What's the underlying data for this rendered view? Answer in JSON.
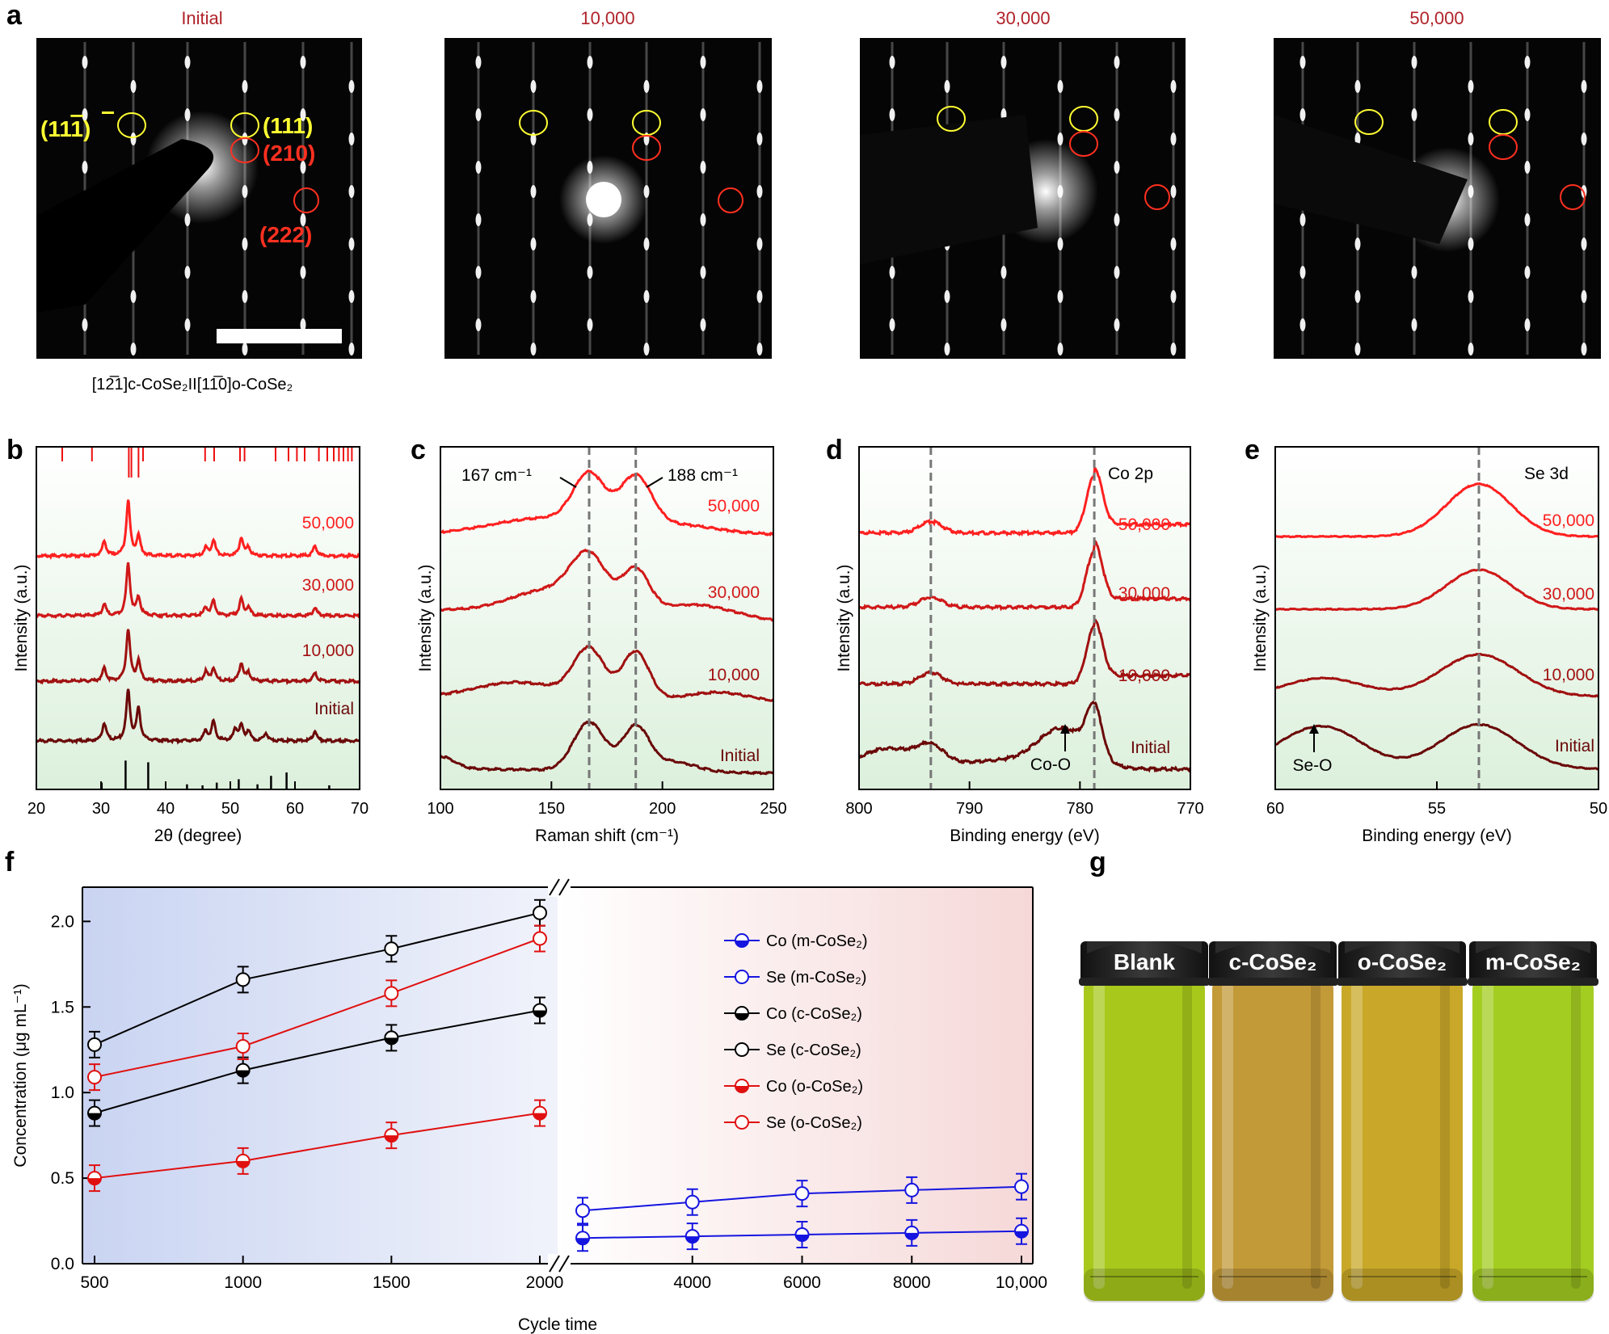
{
  "panels": {
    "a": "a",
    "b": "b",
    "c": "c",
    "d": "d",
    "e": "e",
    "f": "f",
    "g": "g"
  },
  "saed": {
    "titles": [
      "Initial",
      "10,000",
      "30,000",
      "50,000"
    ],
    "labels": {
      "i111b": "(11",
      "i111b_bar": "1",
      "i111b_end": ")",
      "i111": "(111)",
      "i210": "(210)",
      "i222": "(222)"
    },
    "caption": "[12̅1]c-CoSe₂II[11̅0]o-CoSe₂",
    "title_color": "#b0232a"
  },
  "chart_data": [
    {
      "id": "b",
      "type": "line",
      "xlabel": "2θ (degree)",
      "ylabel": "Intensity (a.u.)",
      "xlim": [
        20,
        70
      ],
      "xticks": [
        20,
        30,
        40,
        50,
        60,
        70
      ],
      "series": [
        {
          "name": "50,000",
          "peaks": [
            [
              30.5,
              0.45
            ],
            [
              34.2,
              1.7
            ],
            [
              35.8,
              0.6
            ],
            [
              46.2,
              0.25
            ],
            [
              47.4,
              0.5
            ],
            [
              51.7,
              0.55
            ],
            [
              52.8,
              0.25
            ],
            [
              63.1,
              0.3
            ]
          ]
        },
        {
          "name": "30,000",
          "peaks": [
            [
              30.5,
              0.35
            ],
            [
              34.2,
              1.6
            ],
            [
              35.8,
              0.55
            ],
            [
              46.2,
              0.25
            ],
            [
              47.4,
              0.45
            ],
            [
              51.7,
              0.5
            ],
            [
              52.8,
              0.25
            ],
            [
              63.1,
              0.25
            ]
          ]
        },
        {
          "name": "10,000",
          "peaks": [
            [
              30.5,
              0.4
            ],
            [
              34.2,
              1.6
            ],
            [
              35.8,
              0.6
            ],
            [
              46.2,
              0.3
            ],
            [
              47.4,
              0.4
            ],
            [
              51.7,
              0.55
            ],
            [
              52.8,
              0.25
            ],
            [
              63.1,
              0.25
            ]
          ]
        },
        {
          "name": "Initial",
          "peaks": [
            [
              30.5,
              0.55
            ],
            [
              34.2,
              1.55
            ],
            [
              35.8,
              1.0
            ],
            [
              46.2,
              0.3
            ],
            [
              47.4,
              0.6
            ],
            [
              50.8,
              0.35
            ],
            [
              51.7,
              0.45
            ],
            [
              52.8,
              0.3
            ],
            [
              55.5,
              0.25
            ],
            [
              63.1,
              0.3
            ]
          ]
        }
      ],
      "ref_top": [
        24,
        28.6,
        34.3,
        34.7,
        35.8,
        36.5,
        46.1,
        47.5,
        51.5,
        52.2,
        57,
        59,
        60.3,
        61.5,
        63.7,
        65,
        66,
        66.8,
        67.5,
        68.2,
        68.8
      ],
      "ref_bottom": [
        [
          30.1,
          0.2
        ],
        [
          33.8,
          0.85
        ],
        [
          37.3,
          0.8
        ],
        [
          43.3,
          0.15
        ],
        [
          45.7,
          0.12
        ],
        [
          47.9,
          0.2
        ],
        [
          51.3,
          0.3
        ],
        [
          54.2,
          0.15
        ],
        [
          56.3,
          0.4
        ],
        [
          58.7,
          0.5
        ],
        [
          65.3,
          0.12
        ]
      ]
    },
    {
      "id": "c",
      "type": "line",
      "xlabel": "Raman shift (cm⁻¹)",
      "ylabel": "Intensity (a.u.)",
      "xlim": [
        100,
        250
      ],
      "xticks": [
        100,
        150,
        200,
        250
      ],
      "vlines": [
        167,
        188
      ],
      "annotations": [
        "167 cm⁻¹",
        "188 cm⁻¹"
      ],
      "series": [
        {
          "name": "50,000"
        },
        {
          "name": "30,000"
        },
        {
          "name": "10,000"
        },
        {
          "name": "Initial"
        }
      ]
    },
    {
      "id": "d",
      "type": "line",
      "xlabel": "Binding energy (eV)",
      "ylabel": "Intensity (a.u.)",
      "xlim": [
        800,
        770
      ],
      "xticks": [
        800,
        790,
        780,
        770
      ],
      "vlines": [
        793.5,
        778.7
      ],
      "annotations": [
        "Co 2p",
        "Co-O"
      ],
      "series": [
        {
          "name": "50,000"
        },
        {
          "name": "30,000"
        },
        {
          "name": "10,000"
        },
        {
          "name": "Initial"
        }
      ]
    },
    {
      "id": "e",
      "type": "line",
      "xlabel": "Binding energy (eV)",
      "ylabel": "Intensity (a.u.)",
      "xlim": [
        60,
        50
      ],
      "xticks": [
        60,
        55,
        50
      ],
      "vlines": [
        53.7
      ],
      "annotations": [
        "Se 3d",
        "Se-O"
      ],
      "series": [
        {
          "name": "50,000"
        },
        {
          "name": "30,000"
        },
        {
          "name": "10,000"
        },
        {
          "name": "Initial"
        }
      ]
    },
    {
      "id": "f",
      "type": "line",
      "xlabel": "Cycle time",
      "ylabel": "Concentration (μg mL⁻¹)",
      "ylim": [
        0,
        2.2
      ],
      "yticks": [
        "0.0",
        "0.5",
        "1.0",
        "1.5",
        "2.0"
      ],
      "xticks_left": [
        "500",
        "1000",
        "1500",
        "2000"
      ],
      "xticks_right": [
        "4000",
        "6000",
        "8000",
        "10,000"
      ],
      "series": [
        {
          "name": "Co (m-CoSe₂)",
          "color": "#1515e0",
          "style": "half",
          "x": [
            2000,
            4000,
            6000,
            8000,
            10000
          ],
          "values": [
            0.15,
            0.16,
            0.17,
            0.18,
            0.19
          ]
        },
        {
          "name": "Se (m-CoSe₂)",
          "color": "#1515e0",
          "style": "open",
          "x": [
            2000,
            4000,
            6000,
            8000,
            10000
          ],
          "values": [
            0.31,
            0.36,
            0.41,
            0.43,
            0.45
          ]
        },
        {
          "name": "Co (c-CoSe₂)",
          "color": "#000000",
          "style": "half",
          "x": [
            500,
            1000,
            1500,
            2000
          ],
          "values": [
            0.88,
            1.13,
            1.32,
            1.48
          ]
        },
        {
          "name": "Se (c-CoSe₂)",
          "color": "#000000",
          "style": "open",
          "x": [
            500,
            1000,
            1500,
            2000
          ],
          "values": [
            1.28,
            1.66,
            1.84,
            2.05
          ]
        },
        {
          "name": "Co (o-CoSe₂)",
          "color": "#e01010",
          "style": "half",
          "x": [
            500,
            1000,
            1500,
            2000
          ],
          "values": [
            0.5,
            0.6,
            0.75,
            0.88
          ]
        },
        {
          "name": "Se (o-CoSe₂)",
          "color": "#e01010",
          "style": "open",
          "x": [
            500,
            1000,
            1500,
            2000
          ],
          "values": [
            1.09,
            1.27,
            1.58,
            1.9
          ]
        }
      ]
    }
  ],
  "vials": {
    "labels": [
      "Blank",
      "c-CoSe₂",
      "o-CoSe₂",
      "m-CoSe₂"
    ],
    "colors": [
      "#a8c81c",
      "#c39a38",
      "#c9a829",
      "#a4cd22"
    ]
  },
  "colors": {
    "c50": "#ff2020",
    "c30": "#d01818",
    "c10": "#a01010",
    "cinit": "#6a0808"
  }
}
